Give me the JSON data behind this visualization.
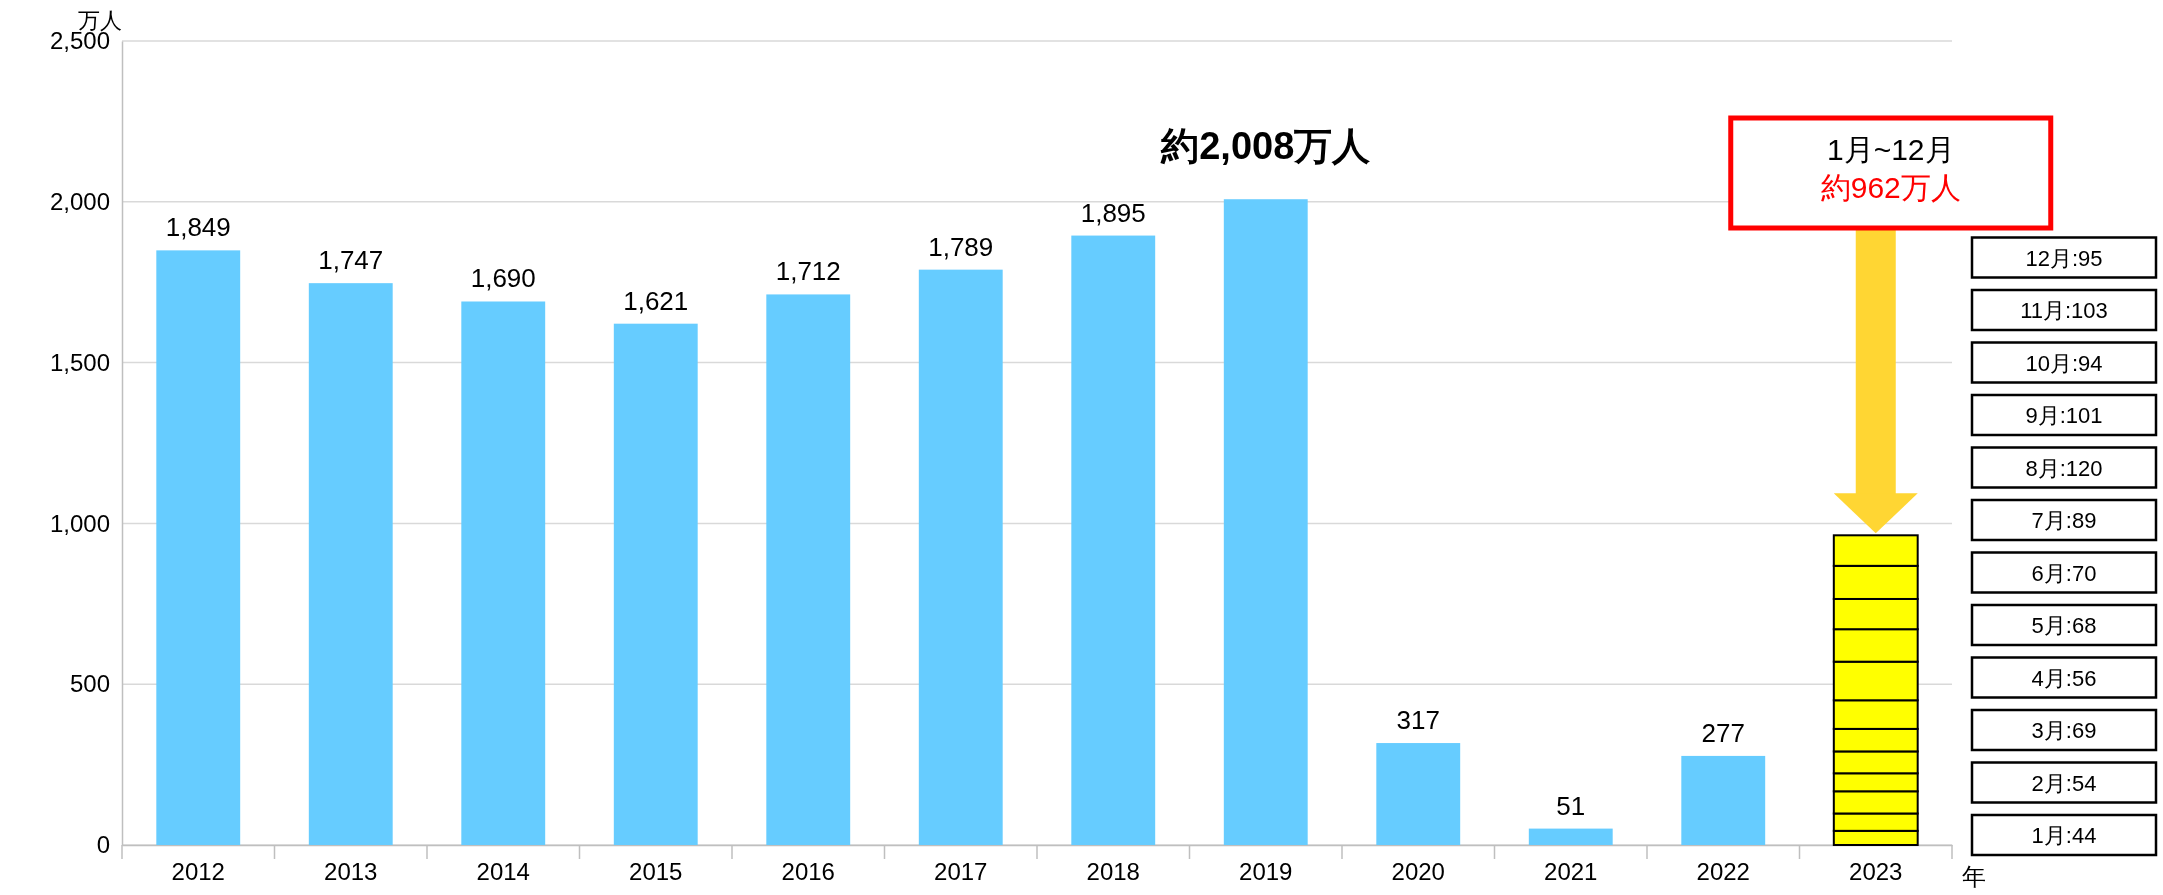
{
  "chart_data": {
    "type": "bar",
    "stacked": true,
    "categories": [
      "2012",
      "2013",
      "2014",
      "2015",
      "2016",
      "2017",
      "2018",
      "2019",
      "2020",
      "2021",
      "2022",
      "2023"
    ],
    "xlabel": "年",
    "ylabel": "万人",
    "ylim": [
      0,
      2500
    ],
    "yticks": [
      0,
      500,
      {
        "value": 1000,
        "label": "1,000"
      },
      {
        "value": 1500,
        "label": "1,500"
      },
      {
        "value": 2000,
        "label": "2,000"
      },
      {
        "value": 2500,
        "label": "2,500"
      }
    ],
    "grid": "y",
    "series": [
      {
        "color": "#66ccff",
        "values": [
          1849,
          1747,
          1690,
          1621,
          1712,
          1789,
          1895,
          2008,
          317,
          51,
          277,
          null
        ],
        "value_labels": [
          "1,849",
          "1,747",
          "1,690",
          "1,621",
          "1,712",
          "1,789",
          "1,895",
          null,
          "317",
          "51",
          "277",
          null
        ]
      },
      {
        "color": "#ffff00",
        "values": [
          null,
          null,
          null,
          null,
          null,
          null,
          null,
          null,
          null,
          null,
          null,
          44
        ]
      },
      {
        "color": "#ffff00",
        "values": [
          null,
          null,
          null,
          null,
          null,
          null,
          null,
          null,
          null,
          null,
          null,
          54
        ]
      },
      {
        "color": "#ffff00",
        "values": [
          null,
          null,
          null,
          null,
          null,
          null,
          null,
          null,
          null,
          null,
          null,
          69
        ]
      },
      {
        "color": "#ffff00",
        "values": [
          null,
          null,
          null,
          null,
          null,
          null,
          null,
          null,
          null,
          null,
          null,
          56
        ]
      },
      {
        "color": "#ffff00",
        "values": [
          null,
          null,
          null,
          null,
          null,
          null,
          null,
          null,
          null,
          null,
          null,
          68
        ]
      },
      {
        "color": "#ffff00",
        "values": [
          null,
          null,
          null,
          null,
          null,
          null,
          null,
          null,
          null,
          null,
          null,
          70
        ]
      },
      {
        "color": "#ffff00",
        "values": [
          null,
          null,
          null,
          null,
          null,
          null,
          null,
          null,
          null,
          null,
          null,
          89
        ]
      },
      {
        "color": "#ffff00",
        "values": [
          null,
          null,
          null,
          null,
          null,
          null,
          null,
          null,
          null,
          null,
          null,
          120
        ]
      },
      {
        "color": "#ffff00",
        "values": [
          null,
          null,
          null,
          null,
          null,
          null,
          null,
          null,
          null,
          null,
          null,
          101
        ]
      },
      {
        "color": "#ffff00",
        "values": [
          null,
          null,
          null,
          null,
          null,
          null,
          null,
          null,
          null,
          null,
          null,
          94
        ]
      },
      {
        "color": "#ffff00",
        "values": [
          null,
          null,
          null,
          null,
          null,
          null,
          null,
          null,
          null,
          null,
          null,
          103
        ]
      },
      {
        "color": "#ffff00",
        "values": [
          null,
          null,
          null,
          null,
          null,
          null,
          null,
          null,
          null,
          null,
          null,
          95
        ]
      }
    ],
    "annotations": [
      {
        "text": "約2,008万人",
        "x": "2019",
        "y": 2008
      },
      "1月~12月",
      "約962万人",
      "1月:44",
      "2月:54",
      "3月:69",
      "4月:56",
      "5月:68",
      "6月:70",
      "7月:89",
      "8月:120",
      "9月:101",
      "10月:94",
      "11月:103",
      "12月:95"
    ]
  }
}
